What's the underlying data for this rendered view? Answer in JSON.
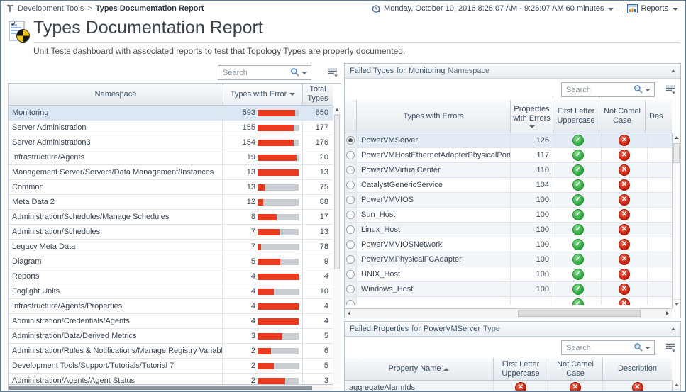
{
  "breadcrumb": {
    "parent": "Development Tools",
    "separator": ">",
    "current": "Types Documentation Report"
  },
  "topbar": {
    "time_range": "Monday, October 10, 2016 8:26:07 AM - 9:26:07 AM 60 minutes",
    "reports_label": "Reports"
  },
  "header": {
    "title": "Types Documentation Report",
    "subtitle": "Unit Tests dashboard with associated reports to test that Topology Types are properly documented."
  },
  "namespace_panel": {
    "search_placeholder": "Search",
    "columns": [
      "Namespace",
      "Types with Error",
      "Total Types"
    ],
    "sort": {
      "column": "Types with Error",
      "direction": "descending"
    },
    "rows": [
      {
        "namespace": "Monitoring",
        "errors": 593,
        "total": 650,
        "selected": true
      },
      {
        "namespace": "Server Administration",
        "errors": 155,
        "total": 177
      },
      {
        "namespace": "Server Administration3",
        "errors": 154,
        "total": 176
      },
      {
        "namespace": "Infrastructure/Agents",
        "errors": 19,
        "total": 20
      },
      {
        "namespace": "Management Server/Servers/Data Management/Instances",
        "errors": 13,
        "total": 13
      },
      {
        "namespace": "Common",
        "errors": 13,
        "total": 75
      },
      {
        "namespace": "Meta Data 2",
        "errors": 12,
        "total": 88
      },
      {
        "namespace": "Administration/Schedules/Manage Schedules",
        "errors": 8,
        "total": 17
      },
      {
        "namespace": "Administration/Schedules",
        "errors": 7,
        "total": 13
      },
      {
        "namespace": "Legacy Meta Data",
        "errors": 7,
        "total": 78
      },
      {
        "namespace": "Diagram",
        "errors": 5,
        "total": 9
      },
      {
        "namespace": "Reports",
        "errors": 4,
        "total": 4
      },
      {
        "namespace": "Foglight Units",
        "errors": 4,
        "total": 10
      },
      {
        "namespace": "Infrastructure/Agents/Properties",
        "errors": 4,
        "total": 4
      },
      {
        "namespace": "Administration/Credentials/Agents",
        "errors": 4,
        "total": 4
      },
      {
        "namespace": "Administration/Data/Derived Metrics",
        "errors": 3,
        "total": 5
      },
      {
        "namespace": "Administration/Rules & Notifications/Manage Registry Variables",
        "errors": 2,
        "total": 6
      },
      {
        "namespace": "Development Tools/Support/Tutorials/Tutorial 7",
        "errors": 2,
        "total": 5
      },
      {
        "namespace": "Administration/Agents/Agent Status",
        "errors": 2,
        "total": 3
      }
    ]
  },
  "failed_types_panel": {
    "title_parts": {
      "p1": "Failed Types",
      "p2": "for",
      "p3": "Monitoring",
      "p4": "Namespace"
    },
    "search_placeholder": "Search",
    "columns": [
      "Types with Errors",
      "Properties with Errors",
      "First Letter Uppercase",
      "Not Camel Case",
      "Des"
    ],
    "sort": {
      "column": "Properties with Errors",
      "direction": "descending"
    },
    "rows": [
      {
        "name": "PowerVMServer",
        "errors": 126,
        "first_letter_uppercase": "pass",
        "not_camel_case": "fail",
        "selected": true
      },
      {
        "name": "PowerVMHostEthernetAdapterPhysicalPort",
        "errors": 117,
        "first_letter_uppercase": "pass",
        "not_camel_case": "fail"
      },
      {
        "name": "PowerVMVirtualCenter",
        "errors": 110,
        "first_letter_uppercase": "pass",
        "not_camel_case": "fail"
      },
      {
        "name": "CatalystGenericService",
        "errors": 104,
        "first_letter_uppercase": "pass",
        "not_camel_case": "fail"
      },
      {
        "name": "PowerVMVIOS",
        "errors": 100,
        "first_letter_uppercase": "pass",
        "not_camel_case": "fail"
      },
      {
        "name": "Sun_Host",
        "errors": 100,
        "first_letter_uppercase": "pass",
        "not_camel_case": "fail"
      },
      {
        "name": "Linux_Host",
        "errors": 100,
        "first_letter_uppercase": "pass",
        "not_camel_case": "fail"
      },
      {
        "name": "PowerVMVIOSNetwork",
        "errors": 100,
        "first_letter_uppercase": "pass",
        "not_camel_case": "fail"
      },
      {
        "name": "PowerVMPhysicalFCAdapter",
        "errors": 100,
        "first_letter_uppercase": "pass",
        "not_camel_case": "fail"
      },
      {
        "name": "UNIX_Host",
        "errors": 100,
        "first_letter_uppercase": "pass",
        "not_camel_case": "fail"
      },
      {
        "name": "Windows_Host",
        "errors": 100,
        "first_letter_uppercase": "pass",
        "not_camel_case": "fail"
      }
    ]
  },
  "failed_properties_panel": {
    "title_parts": {
      "p1": "Failed Properties",
      "p2": "for",
      "p3": "PowerVMServer",
      "p4": "Type"
    },
    "search_placeholder": "Search",
    "columns": [
      "Property Name",
      "First Letter Uppercase",
      "Not Camel Case",
      "Description"
    ],
    "sort": {
      "column": "Property Name",
      "direction": "ascending"
    },
    "rows": [
      {
        "name": "aggregateAlarmIds",
        "first_letter_uppercase": "fail",
        "not_camel_case": "fail",
        "description": "fail"
      }
    ]
  },
  "icons": {
    "pass": "✓",
    "fail": "✕",
    "search": "magnifier",
    "collapse": "triangle-up",
    "sort_desc": "triangle-down",
    "sort_asc": "triangle-up"
  },
  "colors": {
    "error_bar_red": "#ea3b20",
    "bar_track_gray": "#c9cdd2",
    "pass_green": "#2aa63a",
    "fail_red": "#c61d0a",
    "selected_row_blue": "#dbe7f2",
    "page_border": "#5f7d96"
  }
}
